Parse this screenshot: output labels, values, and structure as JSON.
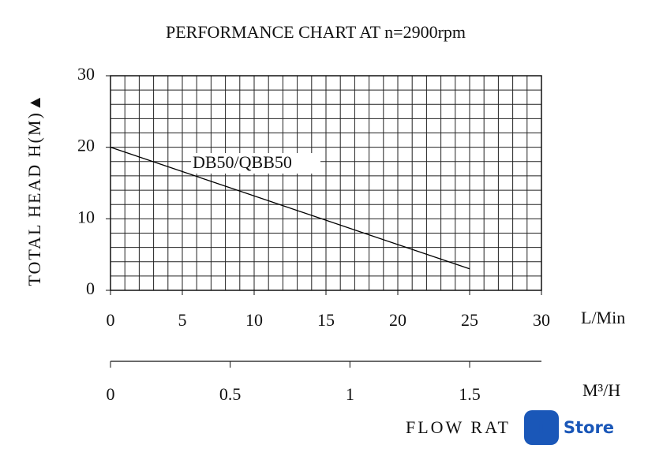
{
  "chart_data": {
    "type": "line",
    "title": "PERFORMANCE CHART AT n=2900rpm",
    "y_label": "TOTAL HEAD H(M)▲",
    "x_label": "L/Min",
    "x2_label": "M³/H",
    "footer": "FLOW RAT",
    "watermark": "iD Store",
    "x": [
      0,
      25
    ],
    "series": [
      {
        "name": "DB50/QBB50",
        "color": "#000000",
        "values": [
          20,
          3
        ]
      }
    ],
    "xlim": [
      0,
      30
    ],
    "xticks": [
      0,
      5,
      10,
      15,
      20,
      25,
      30
    ],
    "ylim": [
      0,
      30
    ],
    "yticks": [
      0,
      10,
      20,
      30
    ],
    "x2lim": [
      0,
      1.8
    ],
    "x2ticks": [
      0,
      0.5,
      1,
      1.5
    ],
    "grid": true,
    "grid_x_step": 1,
    "grid_y_step": 2
  }
}
